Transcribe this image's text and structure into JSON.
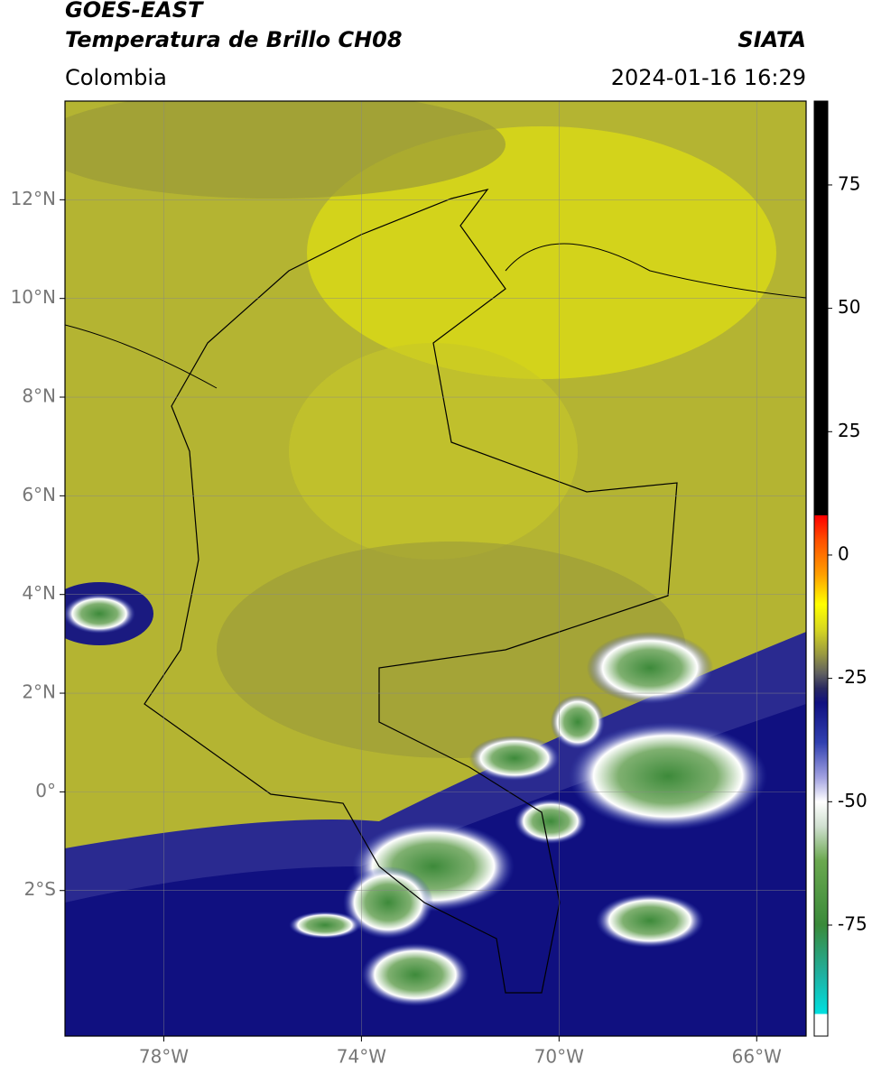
{
  "header": {
    "title": "GOES-EAST",
    "subtitle": "Temperatura de Brillo CH08",
    "region": "Colombia",
    "source": "SIATA",
    "datetime": "2024-01-16 16:29"
  },
  "map": {
    "xlim": [
      -80,
      -65
    ],
    "ylim": [
      -4.95,
      14
    ],
    "xticks": [
      {
        "value": -78,
        "label": "78°W"
      },
      {
        "value": -74,
        "label": "74°W"
      },
      {
        "value": -70,
        "label": "70°W"
      },
      {
        "value": -66,
        "label": "66°W"
      }
    ],
    "yticks": [
      {
        "value": 12,
        "label": "12°N"
      },
      {
        "value": 10,
        "label": "10°N"
      },
      {
        "value": 8,
        "label": "8°N"
      },
      {
        "value": 6,
        "label": "6°N"
      },
      {
        "value": 4,
        "label": "4°N"
      },
      {
        "value": 2,
        "label": "2°N"
      },
      {
        "value": 0,
        "label": "0°"
      },
      {
        "value": -2,
        "label": "2°S"
      }
    ],
    "grid": true
  },
  "colorbar": {
    "lim": [
      -97.5,
      92
    ],
    "ticks": [
      75,
      50,
      25,
      0,
      -25,
      -50,
      -75
    ],
    "stops": [
      {
        "value": -97.5,
        "color": "#ffffff"
      },
      {
        "value": -93,
        "color": "#ffffff"
      },
      {
        "value": -93,
        "color": "#00e0e0"
      },
      {
        "value": -85,
        "color": "#20b0a0"
      },
      {
        "value": -75,
        "color": "#3a8a3a"
      },
      {
        "value": -62,
        "color": "#6aa84f"
      },
      {
        "value": -55,
        "color": "#d0e0d0"
      },
      {
        "value": -50,
        "color": "#ffffff"
      },
      {
        "value": -45,
        "color": "#a0a0e0"
      },
      {
        "value": -38,
        "color": "#3040b0"
      },
      {
        "value": -30,
        "color": "#101080"
      },
      {
        "value": -27,
        "color": "#2a2a60"
      },
      {
        "value": -24,
        "color": "#606060"
      },
      {
        "value": -20,
        "color": "#9a9a40"
      },
      {
        "value": -15,
        "color": "#d8d820"
      },
      {
        "value": -10,
        "color": "#ffff00"
      },
      {
        "value": -4,
        "color": "#ffa000"
      },
      {
        "value": 3,
        "color": "#ff5000"
      },
      {
        "value": 8,
        "color": "#ff0000"
      },
      {
        "value": 8,
        "color": "#000000"
      },
      {
        "value": 92,
        "color": "#000000"
      }
    ]
  }
}
